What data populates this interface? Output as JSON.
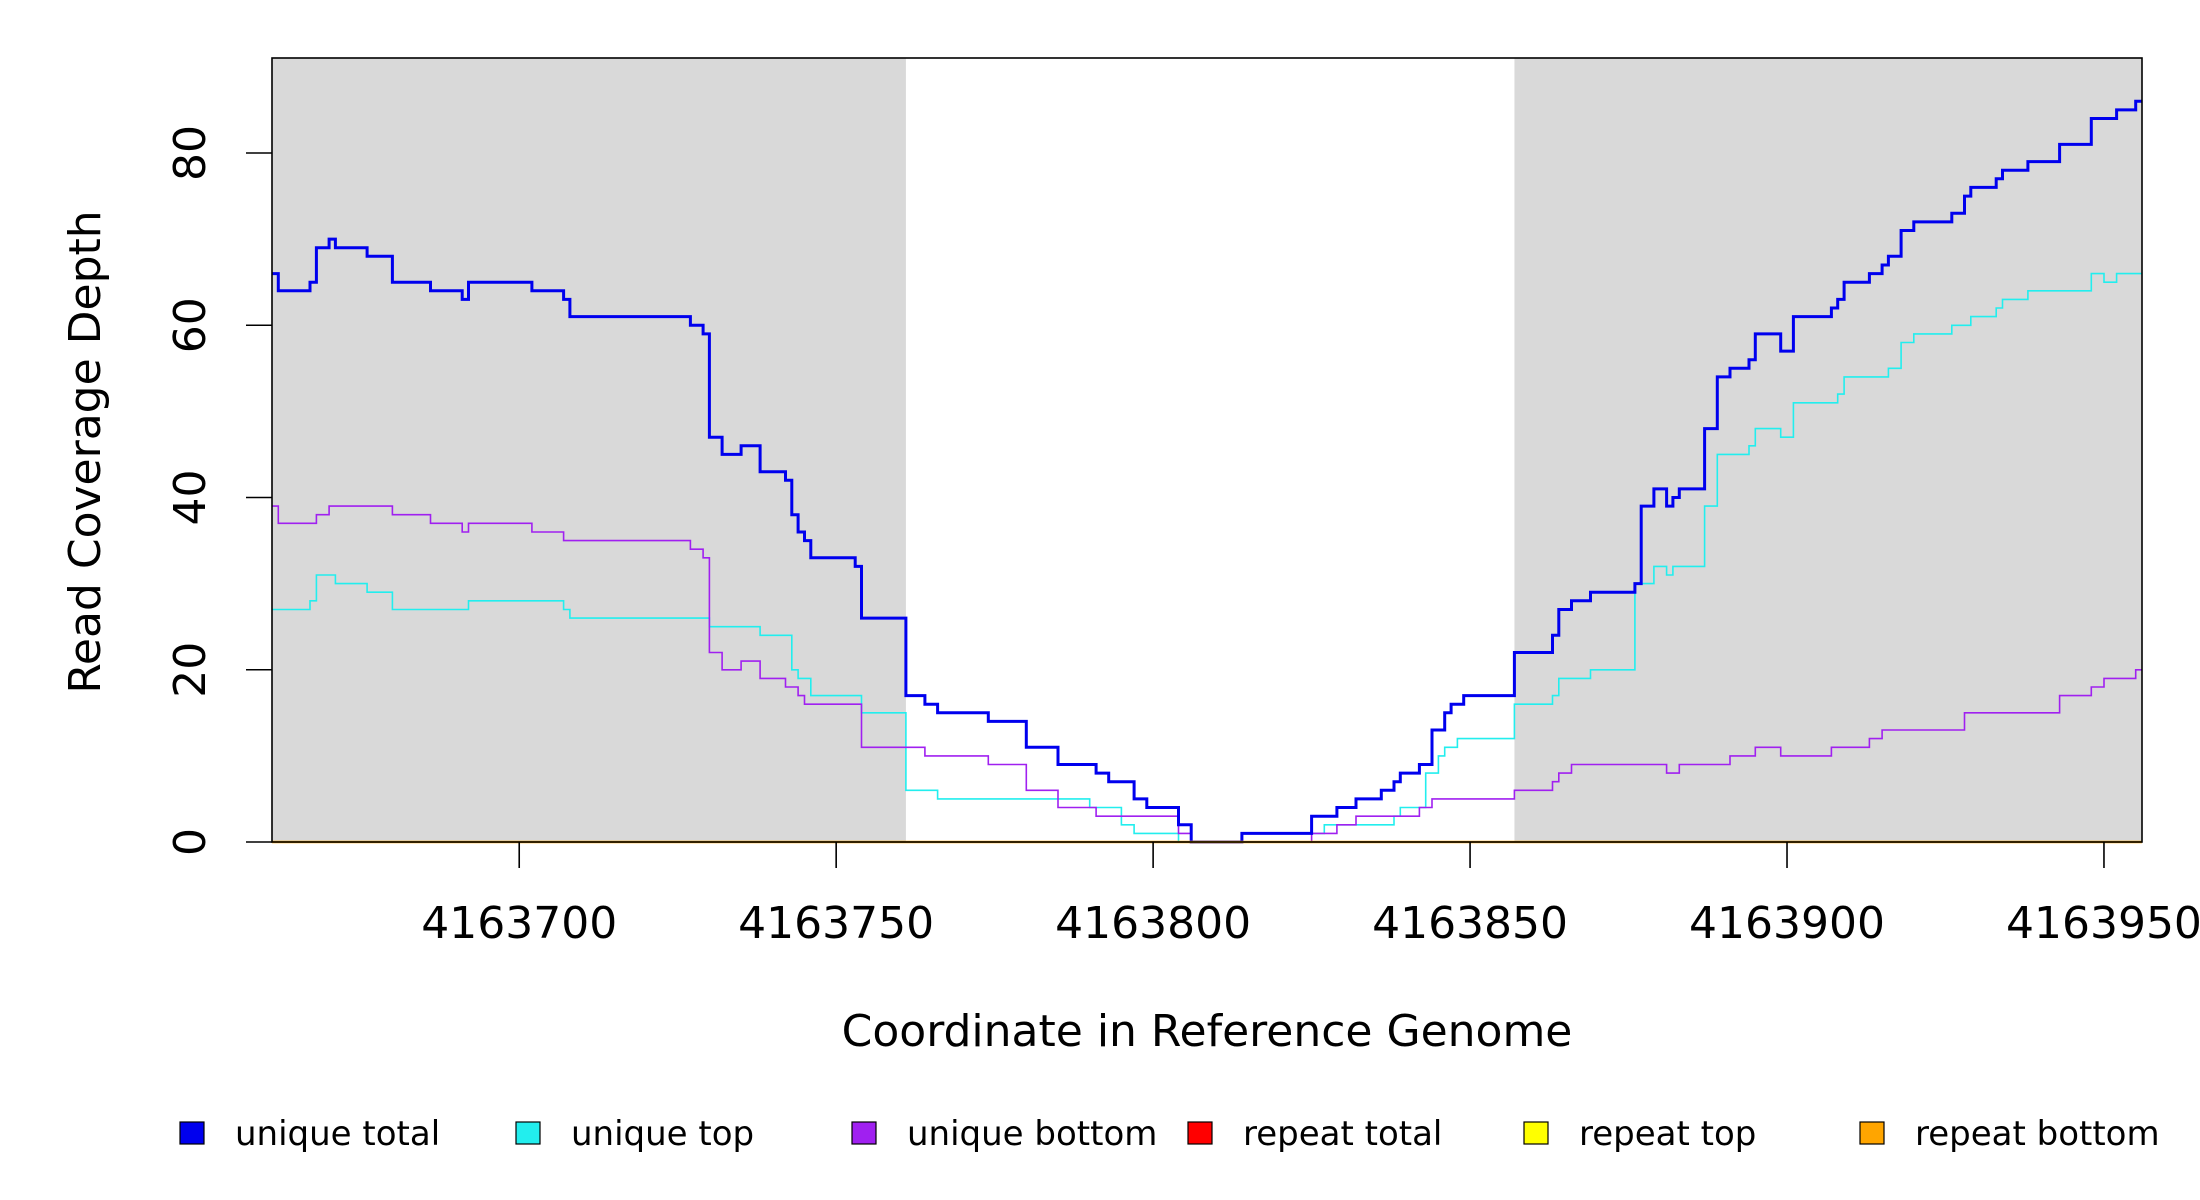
{
  "chart_data": {
    "type": "line",
    "title": "",
    "xlabel": "Coordinate in Reference Genome",
    "ylabel": "Read Coverage Depth",
    "xlim": [
      4163661,
      4163956
    ],
    "ylim": [
      0,
      90
    ],
    "x_ticks": [
      4163700,
      4163750,
      4163800,
      4163850,
      4163900,
      4163950
    ],
    "x_tick_labels": [
      "4163700",
      "4163750",
      "4163800",
      "4163850",
      "4163900",
      "4163950"
    ],
    "y_ticks": [
      0,
      20,
      40,
      60,
      80
    ],
    "y_tick_labels": [
      "0",
      "20",
      "40",
      "60",
      "80"
    ],
    "grid": false,
    "legend_position": "bottom",
    "shaded_regions": [
      [
        4163661,
        4163761
      ],
      [
        4163857,
        4163956
      ]
    ],
    "series": [
      {
        "name": "unique total",
        "color": "#0000EE",
        "line_width": 3,
        "points": [
          [
            4163661,
            66
          ],
          [
            4163662,
            64
          ],
          [
            4163667,
            65
          ],
          [
            4163668,
            69
          ],
          [
            4163670,
            70
          ],
          [
            4163671,
            69
          ],
          [
            4163676,
            68
          ],
          [
            4163680,
            65
          ],
          [
            4163686,
            64
          ],
          [
            4163691,
            63
          ],
          [
            4163692,
            65
          ],
          [
            4163702,
            64
          ],
          [
            4163707,
            63
          ],
          [
            4163708,
            61
          ],
          [
            4163727,
            60
          ],
          [
            4163729,
            59
          ],
          [
            4163730,
            47
          ],
          [
            4163732,
            45
          ],
          [
            4163735,
            46
          ],
          [
            4163738,
            43
          ],
          [
            4163742,
            42
          ],
          [
            4163743,
            38
          ],
          [
            4163744,
            36
          ],
          [
            4163745,
            35
          ],
          [
            4163746,
            33
          ],
          [
            4163753,
            32
          ],
          [
            4163754,
            26
          ],
          [
            4163761,
            17
          ],
          [
            4163764,
            16
          ],
          [
            4163766,
            15
          ],
          [
            4163774,
            14
          ],
          [
            4163780,
            11
          ],
          [
            4163785,
            9
          ],
          [
            4163791,
            8
          ],
          [
            4163793,
            7
          ],
          [
            4163797,
            5
          ],
          [
            4163799,
            4
          ],
          [
            4163804,
            2
          ],
          [
            4163806,
            0
          ],
          [
            4163814,
            1
          ],
          [
            4163825,
            3
          ],
          [
            4163829,
            4
          ],
          [
            4163832,
            5
          ],
          [
            4163836,
            6
          ],
          [
            4163838,
            7
          ],
          [
            4163839,
            8
          ],
          [
            4163842,
            9
          ],
          [
            4163844,
            13
          ],
          [
            4163846,
            15
          ],
          [
            4163847,
            16
          ],
          [
            4163849,
            17
          ],
          [
            4163857,
            22
          ],
          [
            4163863,
            24
          ],
          [
            4163864,
            27
          ],
          [
            4163866,
            28
          ],
          [
            4163869,
            29
          ],
          [
            4163876,
            30
          ],
          [
            4163877,
            39
          ],
          [
            4163879,
            41
          ],
          [
            4163881,
            39
          ],
          [
            4163882,
            40
          ],
          [
            4163883,
            41
          ],
          [
            4163887,
            48
          ],
          [
            4163889,
            54
          ],
          [
            4163891,
            55
          ],
          [
            4163894,
            56
          ],
          [
            4163895,
            59
          ],
          [
            4163899,
            57
          ],
          [
            4163901,
            61
          ],
          [
            4163907,
            62
          ],
          [
            4163908,
            63
          ],
          [
            4163909,
            65
          ],
          [
            4163913,
            66
          ],
          [
            4163915,
            67
          ],
          [
            4163916,
            68
          ],
          [
            4163918,
            71
          ],
          [
            4163920,
            72
          ],
          [
            4163926,
            73
          ],
          [
            4163928,
            75
          ],
          [
            4163929,
            76
          ],
          [
            4163933,
            77
          ],
          [
            4163934,
            78
          ],
          [
            4163938,
            79
          ],
          [
            4163943,
            81
          ],
          [
            4163948,
            84
          ],
          [
            4163952,
            85
          ],
          [
            4163955,
            86
          ]
        ]
      },
      {
        "name": "unique top",
        "color": "#22EEEE",
        "line_width": 1.6,
        "points": [
          [
            4163661,
            27
          ],
          [
            4163667,
            28
          ],
          [
            4163668,
            31
          ],
          [
            4163671,
            30
          ],
          [
            4163676,
            29
          ],
          [
            4163680,
            27
          ],
          [
            4163692,
            28
          ],
          [
            4163707,
            27
          ],
          [
            4163708,
            26
          ],
          [
            4163730,
            25
          ],
          [
            4163738,
            24
          ],
          [
            4163743,
            20
          ],
          [
            4163744,
            19
          ],
          [
            4163746,
            17
          ],
          [
            4163754,
            15
          ],
          [
            4163761,
            6
          ],
          [
            4163766,
            5
          ],
          [
            4163786,
            5
          ],
          [
            4163790,
            4
          ],
          [
            4163795,
            2
          ],
          [
            4163797,
            1
          ],
          [
            4163804,
            0
          ],
          [
            4163814,
            1
          ],
          [
            4163827,
            2
          ],
          [
            4163833,
            2
          ],
          [
            4163838,
            3
          ],
          [
            4163839,
            4
          ],
          [
            4163843,
            8
          ],
          [
            4163845,
            10
          ],
          [
            4163846,
            11
          ],
          [
            4163848,
            12
          ],
          [
            4163857,
            16
          ],
          [
            4163863,
            17
          ],
          [
            4163864,
            19
          ],
          [
            4163869,
            20
          ],
          [
            4163876,
            30
          ],
          [
            4163879,
            32
          ],
          [
            4163881,
            31
          ],
          [
            4163882,
            32
          ],
          [
            4163887,
            39
          ],
          [
            4163889,
            45
          ],
          [
            4163894,
            46
          ],
          [
            4163895,
            48
          ],
          [
            4163899,
            47
          ],
          [
            4163901,
            51
          ],
          [
            4163908,
            52
          ],
          [
            4163909,
            54
          ],
          [
            4163916,
            55
          ],
          [
            4163918,
            58
          ],
          [
            4163920,
            59
          ],
          [
            4163926,
            60
          ],
          [
            4163929,
            61
          ],
          [
            4163933,
            62
          ],
          [
            4163934,
            63
          ],
          [
            4163938,
            64
          ],
          [
            4163948,
            66
          ],
          [
            4163950,
            65
          ],
          [
            4163952,
            66
          ]
        ]
      },
      {
        "name": "unique bottom",
        "color": "#A020F0",
        "line_width": 1.6,
        "points": [
          [
            4163661,
            39
          ],
          [
            4163662,
            37
          ],
          [
            4163668,
            38
          ],
          [
            4163670,
            39
          ],
          [
            4163680,
            38
          ],
          [
            4163686,
            37
          ],
          [
            4163691,
            36
          ],
          [
            4163692,
            37
          ],
          [
            4163702,
            36
          ],
          [
            4163707,
            35
          ],
          [
            4163727,
            34
          ],
          [
            4163729,
            33
          ],
          [
            4163730,
            22
          ],
          [
            4163732,
            20
          ],
          [
            4163735,
            21
          ],
          [
            4163738,
            19
          ],
          [
            4163742,
            18
          ],
          [
            4163744,
            17
          ],
          [
            4163745,
            16
          ],
          [
            4163754,
            11
          ],
          [
            4163764,
            10
          ],
          [
            4163774,
            9
          ],
          [
            4163780,
            6
          ],
          [
            4163785,
            4
          ],
          [
            4163791,
            3
          ],
          [
            4163797,
            3
          ],
          [
            4163804,
            1
          ],
          [
            4163806,
            0
          ],
          [
            4163825,
            1
          ],
          [
            4163829,
            2
          ],
          [
            4163832,
            3
          ],
          [
            4163842,
            4
          ],
          [
            4163844,
            5
          ],
          [
            4163857,
            6
          ],
          [
            4163863,
            7
          ],
          [
            4163864,
            8
          ],
          [
            4163866,
            9
          ],
          [
            4163881,
            8
          ],
          [
            4163883,
            9
          ],
          [
            4163891,
            10
          ],
          [
            4163895,
            11
          ],
          [
            4163899,
            10
          ],
          [
            4163907,
            11
          ],
          [
            4163913,
            12
          ],
          [
            4163915,
            13
          ],
          [
            4163928,
            15
          ],
          [
            4163943,
            17
          ],
          [
            4163948,
            18
          ],
          [
            4163950,
            19
          ],
          [
            4163955,
            20
          ]
        ]
      },
      {
        "name": "repeat total",
        "color": "#FF0000",
        "line_width": 1.6,
        "points": [
          [
            4163661,
            0
          ],
          [
            4163956,
            0
          ]
        ]
      },
      {
        "name": "repeat top",
        "color": "#FFFF00",
        "line_width": 1.6,
        "points": [
          [
            4163661,
            0
          ],
          [
            4163956,
            0
          ]
        ]
      },
      {
        "name": "repeat bottom",
        "color": "#FFA500",
        "line_width": 2.5,
        "points": [
          [
            4163661,
            0
          ],
          [
            4163956,
            0
          ]
        ]
      }
    ]
  }
}
